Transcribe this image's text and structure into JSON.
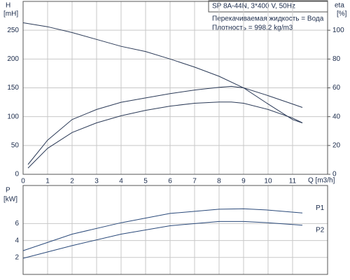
{
  "chart_data": [
    {
      "type": "line",
      "annotations": [
        "SP 8A-44N, 3*400 V, 50Hz",
        "Перекачиваемая жидкость = Вода",
        "Плотность = 998.2 kg/m3"
      ],
      "xlabel": "Q [m3/h]",
      "ylabel": [
        "H",
        "[mH]"
      ],
      "y2label": [
        "eta",
        "[%]"
      ],
      "xlim": [
        0,
        12.43
      ],
      "xticks": [
        0,
        1,
        2,
        3,
        4,
        5,
        6,
        7,
        8,
        9,
        10,
        11
      ],
      "ylim": [
        0,
        300
      ],
      "yticks": [
        0,
        50,
        100,
        150,
        200,
        250
      ],
      "y2lim": [
        0,
        120
      ],
      "y2ticks": [
        0,
        20,
        40,
        60,
        80,
        100
      ],
      "grid": true,
      "series": [
        {
          "color": "#2b3a57",
          "x": [
            0,
            1,
            2,
            3,
            4,
            5,
            6,
            7,
            8,
            9,
            10,
            11,
            11.4
          ],
          "values": [
            263,
            256,
            246,
            234,
            222,
            213,
            200,
            186,
            170,
            150,
            122,
            95,
            89
          ]
        },
        {
          "color": "#2b3a57",
          "axis": "y2",
          "x": [
            0.2,
            1,
            2,
            3,
            4,
            5,
            6,
            7,
            8,
            8.5,
            9,
            10,
            11,
            11.4
          ],
          "values": [
            6.8,
            23.7,
            38,
            45,
            50,
            53,
            56,
            58.5,
            60.4,
            61,
            60,
            54.6,
            48.8,
            46.4
          ]
        },
        {
          "color": "#2b3a57",
          "axis": "y2",
          "x": [
            0.2,
            1,
            2,
            3,
            4,
            5,
            6,
            7,
            8,
            8.5,
            9,
            10,
            11,
            11.4
          ],
          "values": [
            4.3,
            18,
            29,
            35.7,
            40.6,
            44.4,
            47.3,
            49.3,
            50.2,
            50.2,
            49.3,
            45,
            39,
            35.7
          ]
        }
      ]
    },
    {
      "type": "line",
      "ylabel": [
        "P",
        "[kW]"
      ],
      "xlim": [
        0,
        12.43
      ],
      "xticks": [
        0,
        1,
        2,
        3,
        4,
        5,
        6,
        7,
        8,
        9,
        10,
        11
      ],
      "ylim": [
        0,
        10.5
      ],
      "yticks": [
        2,
        4,
        6
      ],
      "grid": true,
      "series": [
        {
          "name": "P1",
          "color": "#2b4a7a",
          "x": [
            0,
            2,
            4,
            6,
            8,
            9,
            10,
            11.4
          ],
          "values": [
            2.8,
            4.75,
            6.1,
            7.2,
            7.7,
            7.75,
            7.6,
            7.25
          ]
        },
        {
          "name": "P2",
          "color": "#2b4a7a",
          "x": [
            0,
            2,
            4,
            6,
            8,
            9,
            10,
            11.4
          ],
          "values": [
            1.9,
            3.4,
            4.75,
            5.75,
            6.25,
            6.25,
            6.1,
            5.8
          ]
        }
      ]
    }
  ]
}
